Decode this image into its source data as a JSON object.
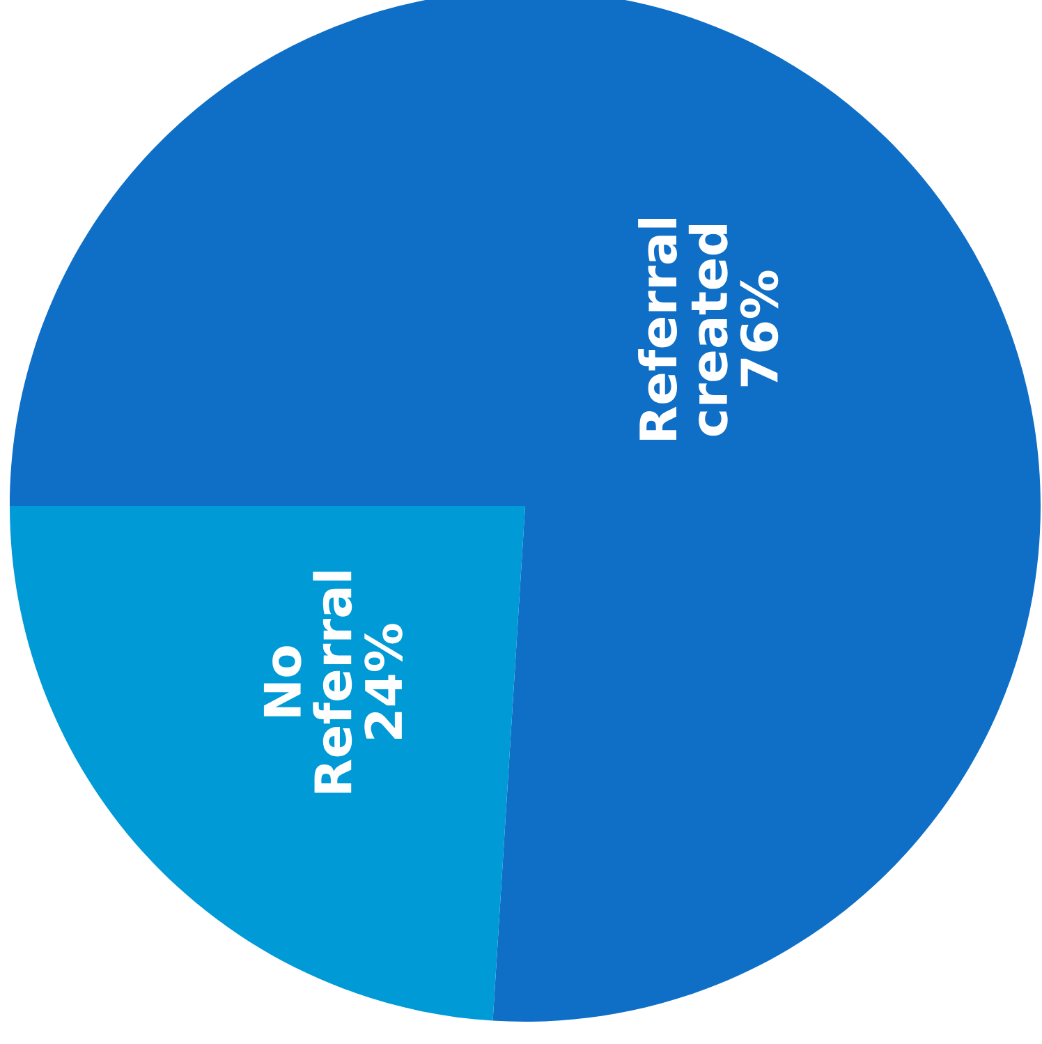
{
  "chart_data": {
    "type": "pie",
    "categories": [
      "Referral created",
      "No Referral"
    ],
    "values": [
      76,
      24
    ],
    "colors": [
      "#0f6ec6",
      "#009ad6"
    ],
    "value_labels": [
      "76%",
      "24%"
    ]
  }
}
